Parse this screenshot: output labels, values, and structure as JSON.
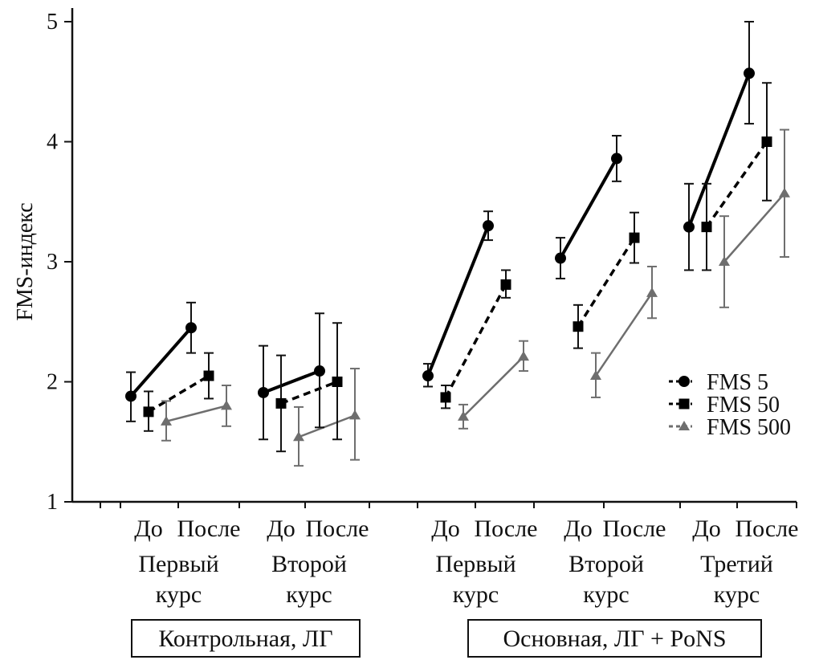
{
  "chart_data": {
    "type": "line",
    "title": "",
    "ylabel": "FMS-индекс",
    "xlabel": "",
    "ylim": [
      1,
      5
    ],
    "yticks": [
      "1",
      "2",
      "3",
      "4",
      "5"
    ],
    "categories": [
      "До",
      "После",
      "До",
      "После",
      "До",
      "После",
      "До",
      "После",
      "До",
      "После"
    ],
    "courses": [
      {
        "line1": "Первый",
        "line2": "курс"
      },
      {
        "line1": "Второй",
        "line2": "курс"
      },
      {
        "line1": "Первый",
        "line2": "курс"
      },
      {
        "line1": "Второй",
        "line2": "курс"
      },
      {
        "line1": "Третий",
        "line2": "курс"
      }
    ],
    "groups": [
      {
        "label": "Контрольная, ЛГ"
      },
      {
        "label": "Основная, ЛГ + PoNS"
      }
    ],
    "legend_position": "right",
    "series": [
      {
        "name": "FMS 5",
        "marker": "circle",
        "line": "solid",
        "color": "#000000",
        "values": [
          1.88,
          2.45,
          1.91,
          2.09,
          2.05,
          3.3,
          3.03,
          3.86,
          3.29,
          4.57
        ],
        "err_low": [
          1.67,
          2.24,
          1.52,
          1.62,
          1.96,
          3.18,
          2.86,
          3.67,
          2.93,
          4.15
        ],
        "err_high": [
          2.08,
          2.66,
          2.3,
          2.57,
          2.15,
          3.42,
          3.2,
          4.05,
          3.65,
          5.0
        ]
      },
      {
        "name": "FMS 50",
        "marker": "square",
        "line": "dashed",
        "color": "#000000",
        "values": [
          1.75,
          2.05,
          1.82,
          2.0,
          1.87,
          2.81,
          2.46,
          3.2,
          3.29,
          4.0
        ],
        "err_low": [
          1.59,
          1.86,
          1.42,
          1.52,
          1.78,
          2.7,
          2.28,
          2.99,
          2.93,
          3.51
        ],
        "err_high": [
          1.92,
          2.24,
          2.22,
          2.49,
          1.97,
          2.93,
          2.64,
          3.41,
          3.65,
          4.49
        ]
      },
      {
        "name": "FMS 500",
        "marker": "triangle",
        "line": "solid",
        "color": "#6e6e6e",
        "values": [
          1.67,
          1.8,
          1.54,
          1.72,
          1.71,
          2.21,
          2.05,
          2.74,
          3.0,
          3.57
        ],
        "err_low": [
          1.51,
          1.63,
          1.3,
          1.35,
          1.61,
          2.09,
          1.87,
          2.53,
          2.62,
          3.04
        ],
        "err_high": [
          1.84,
          1.97,
          1.79,
          2.11,
          1.81,
          2.34,
          2.24,
          2.96,
          3.38,
          4.1
        ]
      }
    ]
  }
}
